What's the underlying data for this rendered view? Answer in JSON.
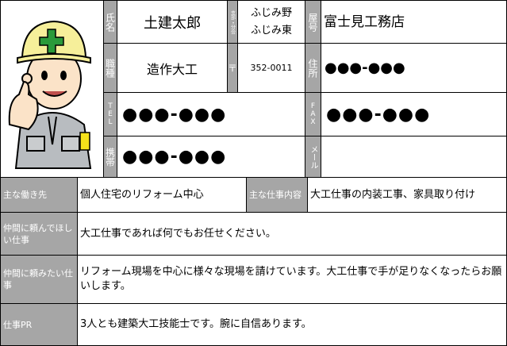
{
  "profile": {
    "name_label": "氏名",
    "name": "土建太郎",
    "branch_label": "支部・分会",
    "branch": [
      "ふじみ野",
      "ふじみ東"
    ],
    "trade_name_label": "屋号",
    "trade_name": "富士見工務店",
    "job_label": "職種",
    "job": "造作大工",
    "postal_label": "〒",
    "postal": "352-0011",
    "address_label": "住所",
    "address": "●●●-●●●",
    "tel_label": "TEL",
    "tel": "●●●-●●●",
    "fax_label": "FAX",
    "fax": "●●●-●●●",
    "mobile_label": "携帯",
    "mobile": "●●●-●●●",
    "email_label": "メール"
  },
  "details": {
    "workplace_label": "主な働き先",
    "workplace": "個人住宅のリフォーム中心",
    "main_work_label": "主な仕事内容",
    "main_work": "大工仕事の内装工事、家具取り付け",
    "rows": [
      {
        "label": "仲間に頼んでほしい仕事",
        "text": "大工仕事であれば何でもお任せください。"
      },
      {
        "label": "仲間に頼みたい仕事",
        "text": "リフォーム現場を中心に様々な現場を請けています。大工仕事で手が足りなくなったらお願いします。"
      },
      {
        "label": "仕事PR",
        "text": "3人とも建築大工技能士です。腕に自信あります。"
      }
    ]
  }
}
